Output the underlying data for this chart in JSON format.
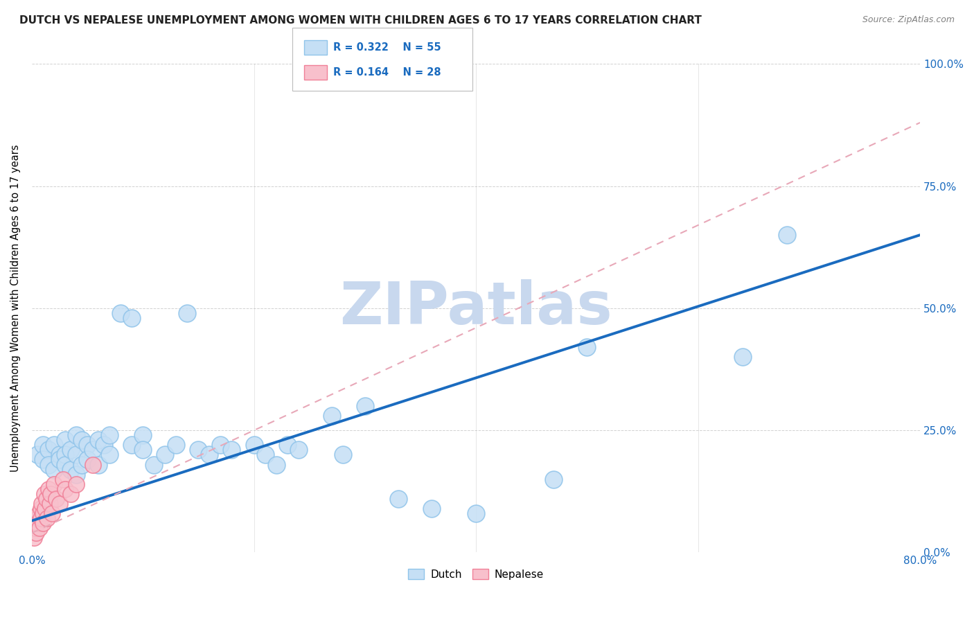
{
  "title": "DUTCH VS NEPALESE UNEMPLOYMENT AMONG WOMEN WITH CHILDREN AGES 6 TO 17 YEARS CORRELATION CHART",
  "source": "Source: ZipAtlas.com",
  "ylabel": "Unemployment Among Women with Children Ages 6 to 17 years",
  "xmin": 0.0,
  "xmax": 0.8,
  "ymin": 0.0,
  "ymax": 1.0,
  "ytick_vals": [
    0.0,
    0.25,
    0.5,
    0.75,
    1.0
  ],
  "ytick_labels": [
    "0.0%",
    "25.0%",
    "50.0%",
    "75.0%",
    "100.0%"
  ],
  "xtick_vals": [
    0.0,
    0.2,
    0.4,
    0.6,
    0.8
  ],
  "xtick_labels_bottom": [
    "0.0%",
    "",
    "",
    "",
    "80.0%"
  ],
  "watermark": "ZIPatlas",
  "legend_dutch_R": "R = 0.322",
  "legend_dutch_N": "N = 55",
  "legend_nep_R": "R = 0.164",
  "legend_nep_N": "N = 28",
  "dutch_color": "#90C4EA",
  "dutch_fill_color": "#C5DFF5",
  "nepalese_color": "#F08098",
  "nepalese_fill_color": "#F8C0CC",
  "dutch_line_color": "#1A6BBF",
  "nepalese_line_color": "#E8A8B8",
  "background_color": "#FFFFFF",
  "title_color": "#222222",
  "axis_label_color": "#1A6BBF",
  "tick_color": "#1A6BBF",
  "grid_color": "#CCCCCC",
  "watermark_color": "#C8D8EE",
  "title_fontsize": 11,
  "source_fontsize": 9,
  "dutch_scatter_x": [
    0.005,
    0.01,
    0.01,
    0.015,
    0.015,
    0.02,
    0.02,
    0.025,
    0.025,
    0.03,
    0.03,
    0.03,
    0.035,
    0.035,
    0.04,
    0.04,
    0.04,
    0.045,
    0.045,
    0.05,
    0.05,
    0.055,
    0.06,
    0.06,
    0.065,
    0.07,
    0.07,
    0.08,
    0.09,
    0.09,
    0.1,
    0.1,
    0.11,
    0.12,
    0.13,
    0.14,
    0.15,
    0.16,
    0.17,
    0.18,
    0.2,
    0.21,
    0.22,
    0.23,
    0.24,
    0.27,
    0.28,
    0.3,
    0.33,
    0.36,
    0.4,
    0.47,
    0.5,
    0.64,
    0.68
  ],
  "dutch_scatter_y": [
    0.2,
    0.22,
    0.19,
    0.21,
    0.18,
    0.22,
    0.17,
    0.2,
    0.19,
    0.23,
    0.2,
    0.18,
    0.21,
    0.17,
    0.24,
    0.2,
    0.16,
    0.23,
    0.18,
    0.22,
    0.19,
    0.21,
    0.23,
    0.18,
    0.22,
    0.24,
    0.2,
    0.49,
    0.48,
    0.22,
    0.24,
    0.21,
    0.18,
    0.2,
    0.22,
    0.49,
    0.21,
    0.2,
    0.22,
    0.21,
    0.22,
    0.2,
    0.18,
    0.22,
    0.21,
    0.28,
    0.2,
    0.3,
    0.11,
    0.09,
    0.08,
    0.15,
    0.42,
    0.4,
    0.65
  ],
  "nepalese_scatter_x": [
    0.002,
    0.003,
    0.004,
    0.005,
    0.005,
    0.006,
    0.007,
    0.008,
    0.008,
    0.009,
    0.01,
    0.01,
    0.011,
    0.012,
    0.013,
    0.014,
    0.015,
    0.016,
    0.017,
    0.018,
    0.02,
    0.022,
    0.025,
    0.028,
    0.03,
    0.035,
    0.04,
    0.055
  ],
  "nepalese_scatter_y": [
    0.03,
    0.05,
    0.04,
    0.07,
    0.06,
    0.08,
    0.05,
    0.09,
    0.07,
    0.1,
    0.08,
    0.06,
    0.12,
    0.09,
    0.11,
    0.07,
    0.13,
    0.1,
    0.12,
    0.08,
    0.14,
    0.11,
    0.1,
    0.15,
    0.13,
    0.12,
    0.14,
    0.18
  ],
  "dutch_line_x": [
    0.0,
    0.8
  ],
  "dutch_line_y": [
    0.065,
    0.65
  ],
  "nep_line_x": [
    0.0,
    0.8
  ],
  "nep_line_y": [
    0.04,
    0.88
  ]
}
